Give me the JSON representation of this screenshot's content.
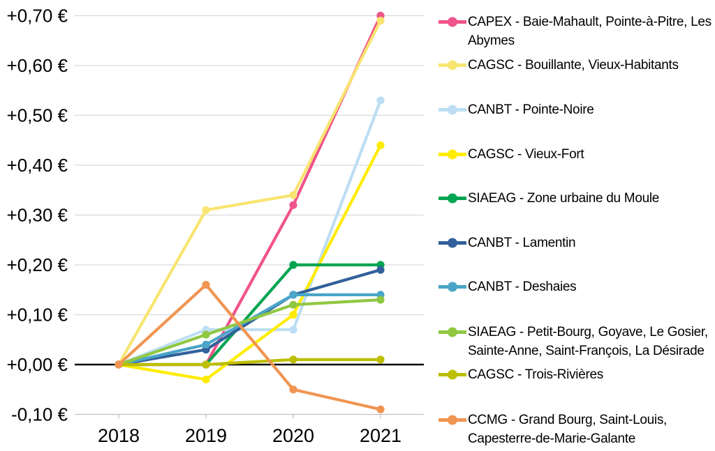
{
  "chart_data": {
    "type": "line",
    "title": "",
    "xlabel": "",
    "ylabel": "",
    "x_categories": [
      "2018",
      "2019",
      "2020",
      "2021"
    ],
    "y_tick_labels": [
      "+0,70 €",
      "+0,60 €",
      "+0,50 €",
      "+0,40 €",
      "+0,30 €",
      "+0,20 €",
      "+0,10 €",
      "+0,00 €",
      "-0,10 €"
    ],
    "y_tick_values": [
      0.7,
      0.6,
      0.5,
      0.4,
      0.3,
      0.2,
      0.1,
      0.0,
      -0.1
    ],
    "ylim": [
      -0.1,
      0.7
    ],
    "grid": true,
    "legend_position": "right",
    "zero_line_color": "#000000",
    "gridline_color": "#d9d9d9",
    "axis_line_color": "#bfbfbf",
    "series": [
      {
        "name": "CAPEX -  Baie-Mahault, Pointe-à-Pitre, Les Abymes",
        "color": "#F0538B",
        "values": [
          0.0,
          0.0,
          0.32,
          0.7
        ]
      },
      {
        "name": "CAGSC - Bouillante, Vieux-Habitants",
        "color": "#F8E571",
        "values": [
          0.0,
          0.31,
          0.34,
          0.69
        ]
      },
      {
        "name": "CANBT - Pointe-Noire",
        "color": "#BDDEF4",
        "values": [
          0.0,
          0.07,
          0.07,
          0.53
        ]
      },
      {
        "name": "CAGSC - Vieux-Fort",
        "color": "#FFEC00",
        "values": [
          0.0,
          -0.03,
          0.1,
          0.44
        ]
      },
      {
        "name": "SIAEAG - Zone urbaine du Moule",
        "color": "#00A551",
        "values": [
          0.0,
          0.0,
          0.2,
          0.2
        ]
      },
      {
        "name": "CANBT - Lamentin",
        "color": "#31609B",
        "values": [
          0.0,
          0.03,
          0.14,
          0.19
        ]
      },
      {
        "name": "CANBT - Deshaies",
        "color": "#4AA5C8",
        "values": [
          0.0,
          0.04,
          0.14,
          0.14
        ]
      },
      {
        "name": "SIAEAG - Petit-Bourg, Goyave, Le Gosier, Sainte-Anne, Saint-François, La Désirade",
        "color": "#8FC741",
        "values": [
          0.0,
          0.06,
          0.12,
          0.13
        ]
      },
      {
        "name": "CAGSC - Trois-Rivières",
        "color": "#BDBE00",
        "values": [
          0.0,
          0.0,
          0.01,
          0.01
        ]
      },
      {
        "name": "CCMG - Grand Bourg, Saint-Louis, Capesterre-de-Marie-Galante",
        "color": "#F09552",
        "values": [
          0.0,
          0.16,
          -0.05,
          -0.09
        ]
      }
    ]
  }
}
